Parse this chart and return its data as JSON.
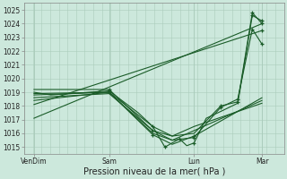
{
  "bg_color": "#cce8dc",
  "grid_color": "#aaccbb",
  "line_color": "#1a5c28",
  "ylim": [
    1014.5,
    1025.5
  ],
  "yticks": [
    1015,
    1016,
    1017,
    1018,
    1019,
    1020,
    1021,
    1022,
    1023,
    1024,
    1025
  ],
  "xlabel": "Pression niveau de la mer( hPa )",
  "xlabel_fontsize": 7.0,
  "tick_fontsize": 5.5,
  "xlim": [
    -0.01,
    1.06
  ],
  "xtick_positions": [
    0.03,
    0.34,
    0.69,
    0.97
  ],
  "xtick_labels": [
    "VenDim",
    "Sam",
    "Lun",
    "Mar"
  ],
  "lines": [
    {
      "x": [
        0.03,
        0.97
      ],
      "y": [
        1017.1,
        1024.0
      ]
    },
    {
      "x": [
        0.03,
        0.97
      ],
      "y": [
        1018.1,
        1023.5
      ]
    },
    {
      "x": [
        0.03,
        0.34,
        0.52,
        0.6,
        0.69,
        0.97
      ],
      "y": [
        1018.6,
        1018.9,
        1016.2,
        1015.8,
        1016.5,
        1018.2
      ]
    },
    {
      "x": [
        0.03,
        0.34,
        0.52,
        0.6,
        0.69,
        0.97
      ],
      "y": [
        1018.9,
        1019.0,
        1016.0,
        1015.5,
        1016.2,
        1018.4
      ]
    },
    {
      "x": [
        0.03,
        0.34,
        0.52,
        0.6,
        0.69,
        0.97
      ],
      "y": [
        1018.4,
        1019.0,
        1015.9,
        1015.2,
        1015.8,
        1018.6
      ]
    },
    {
      "x": [
        0.03,
        0.1,
        0.34,
        0.46,
        0.52,
        0.57,
        0.63,
        0.66,
        0.69,
        0.74,
        0.8,
        0.87,
        0.93,
        0.97
      ],
      "y": [
        1019.0,
        1018.8,
        1019.1,
        1017.5,
        1016.5,
        1015.0,
        1015.6,
        1015.1,
        1015.3,
        1017.1,
        1017.6,
        1018.2,
        1024.6,
        1024.2
      ]
    },
    {
      "x": [
        0.03,
        0.34,
        0.52,
        0.6,
        0.69,
        0.8,
        0.87,
        0.93,
        0.97
      ],
      "y": [
        1019.2,
        1019.2,
        1016.2,
        1015.5,
        1015.7,
        1017.9,
        1018.5,
        1023.6,
        1022.5
      ]
    },
    {
      "x": [
        0.03,
        0.34,
        0.52,
        0.6,
        0.69,
        0.8,
        0.87,
        0.93,
        0.97
      ],
      "y": [
        1018.8,
        1019.0,
        1016.5,
        1015.8,
        1016.0,
        1018.0,
        1018.3,
        1024.8,
        1024.0
      ]
    }
  ],
  "markers": [
    [
      0.34,
      1019.0
    ],
    [
      0.34,
      1019.1
    ],
    [
      0.34,
      1019.2
    ],
    [
      0.52,
      1016.2
    ],
    [
      0.52,
      1015.9
    ],
    [
      0.52,
      1016.5
    ],
    [
      0.57,
      1015.0
    ],
    [
      0.63,
      1015.6
    ],
    [
      0.69,
      1015.3
    ],
    [
      0.69,
      1015.7
    ],
    [
      0.69,
      1015.8
    ],
    [
      0.8,
      1017.9
    ],
    [
      0.8,
      1018.0
    ],
    [
      0.87,
      1018.5
    ],
    [
      0.87,
      1018.3
    ],
    [
      0.93,
      1024.6
    ],
    [
      0.93,
      1023.6
    ],
    [
      0.93,
      1024.8
    ],
    [
      0.97,
      1024.2
    ],
    [
      0.97,
      1024.0
    ],
    [
      0.97,
      1022.5
    ],
    [
      0.97,
      1023.5
    ]
  ]
}
